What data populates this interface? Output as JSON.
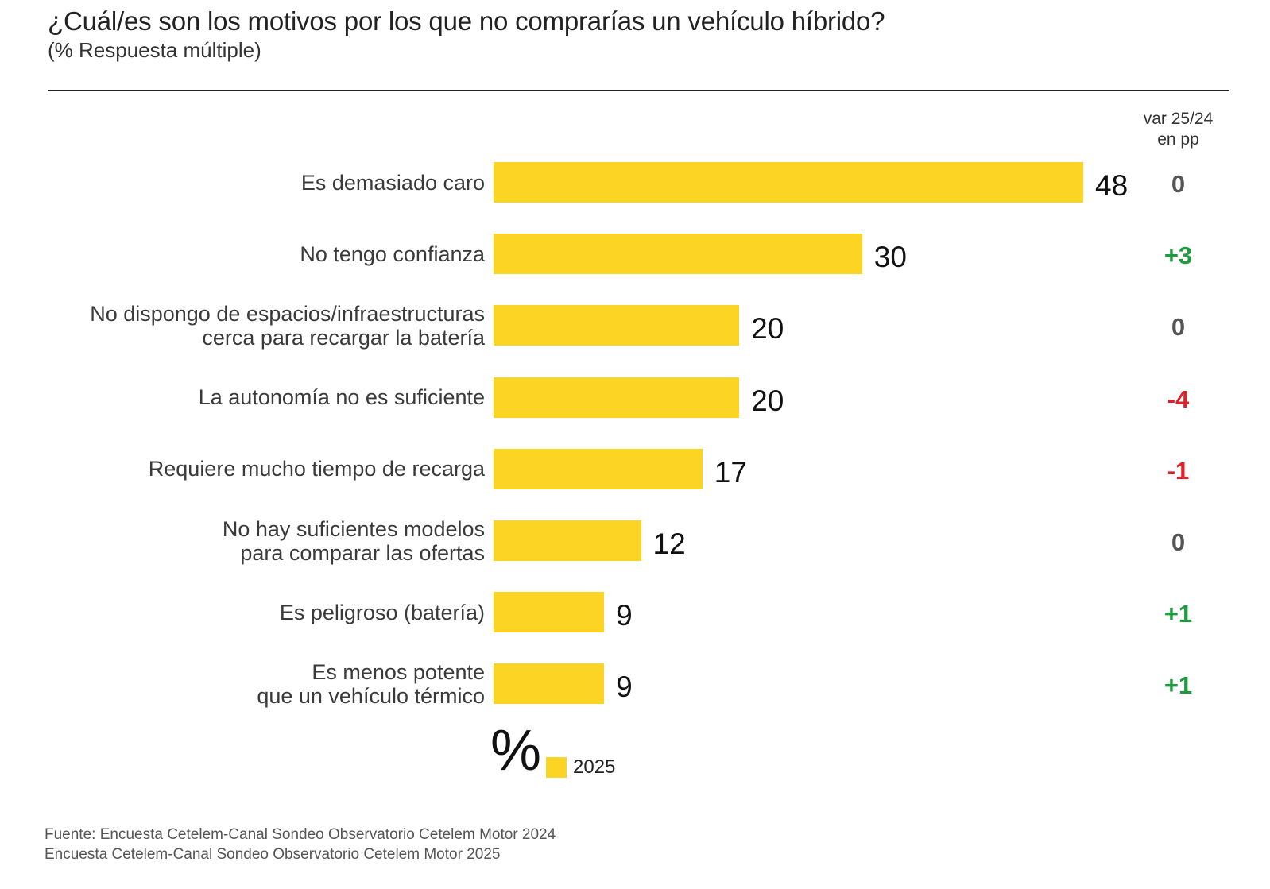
{
  "title": "¿Cuál/es son los motivos por los que no comprarías un vehículo híbrido?",
  "subtitle": "(% Respuesta múltiple)",
  "var_header": [
    "var 25/24",
    "en pp"
  ],
  "legend": {
    "symbol": "%",
    "label": "2025"
  },
  "source": [
    "Fuente: Encuesta Cetelem-Canal Sondeo Observatorio Cetelem Motor 2024",
    "Encuesta Cetelem-Canal Sondeo Observatorio Cetelem Motor 2025"
  ],
  "colors": {
    "bar": "#fcd423",
    "positive": "#1e9a3f",
    "negative": "#e0202a",
    "neutral": "#555555"
  },
  "chart_data": {
    "type": "bar",
    "orientation": "horizontal",
    "title": "¿Cuál/es son los motivos por los que no comprarías un vehículo híbrido?",
    "subtitle": "(% Respuesta múltiple)",
    "categories": [
      [
        "Es demasiado caro"
      ],
      [
        "No tengo confianza"
      ],
      [
        "No dispongo de espacios/infraestructuras",
        "cerca para recargar la batería"
      ],
      [
        "La autonomía no es suficiente"
      ],
      [
        "Requiere mucho tiempo de recarga"
      ],
      [
        "No hay suficientes modelos",
        "para comparar las ofertas"
      ],
      [
        "Es peligroso (batería)"
      ],
      [
        "Es menos potente",
        "que un vehículo térmico"
      ]
    ],
    "series": [
      {
        "name": "2025",
        "values": [
          48,
          30,
          20,
          20,
          17,
          12,
          9,
          9
        ]
      }
    ],
    "variation": [
      "0",
      "+3",
      "0",
      "-4",
      "-1",
      "0",
      "+1",
      "+1"
    ],
    "xlim": [
      0,
      48
    ],
    "grid": false,
    "legend_position": "bottom"
  }
}
